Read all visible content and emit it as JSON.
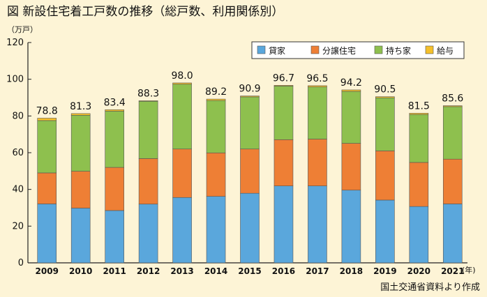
{
  "title": "図 新設住宅着工戸数の推移（総戸数、利用関係別）",
  "unit_label": "（万戸）",
  "year_unit": "(年)",
  "source": "国土交通省資料より作成",
  "chart_data": {
    "type": "bar",
    "stacked": true,
    "categories": [
      "2009",
      "2010",
      "2011",
      "2012",
      "2013",
      "2014",
      "2015",
      "2016",
      "2017",
      "2018",
      "2019",
      "2020",
      "2021"
    ],
    "series": [
      {
        "name": "貸家",
        "color": "#5aa7dc",
        "values": [
          32.1,
          29.8,
          28.5,
          32.0,
          35.6,
          36.2,
          37.9,
          41.9,
          41.9,
          39.6,
          34.2,
          30.7,
          32.1
        ]
      },
      {
        "name": "分譲住宅",
        "color": "#ee7f35",
        "values": [
          16.9,
          20.1,
          23.5,
          24.8,
          26.4,
          23.7,
          24.1,
          25.2,
          25.5,
          25.5,
          26.8,
          24.0,
          24.4
        ]
      },
      {
        "name": "持ち家",
        "color": "#8ec04e",
        "values": [
          28.5,
          30.5,
          30.6,
          31.2,
          35.3,
          28.5,
          28.4,
          29.2,
          28.4,
          28.3,
          28.9,
          26.1,
          28.6
        ]
      },
      {
        "name": "給与",
        "color": "#f5c02a",
        "values": [
          1.3,
          0.9,
          0.8,
          0.3,
          0.7,
          0.8,
          0.5,
          0.4,
          0.7,
          0.8,
          0.6,
          0.7,
          0.5
        ]
      }
    ],
    "totals": [
      "78.8",
      "81.3",
      "83.4",
      "88.3",
      "98.0",
      "89.2",
      "90.9",
      "96.7",
      "96.5",
      "94.2",
      "90.5",
      "81.5",
      "85.6"
    ],
    "ylim": [
      0,
      120
    ],
    "yticks": [
      "0",
      "20",
      "40",
      "60",
      "80",
      "100",
      "120"
    ],
    "legend_position": "top-right",
    "grid": false
  }
}
